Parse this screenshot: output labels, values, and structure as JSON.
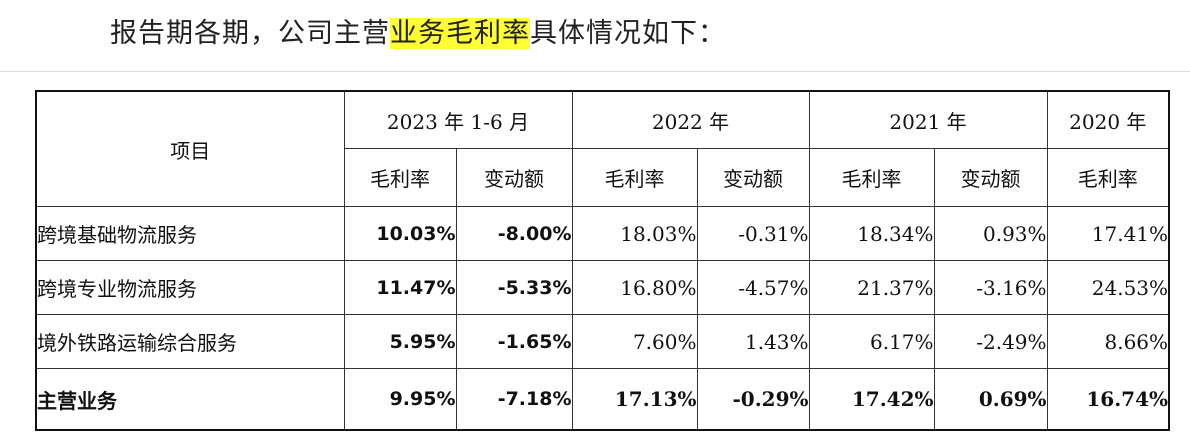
{
  "intro": {
    "before": "报告期各期，公司主营",
    "highlight": "业务毛利率",
    "after": "具体情况如下："
  },
  "table": {
    "item_header": "项目",
    "periods": [
      "2023 年 1-6 月",
      "2022 年",
      "2021 年",
      "2020 年"
    ],
    "sub_margin": "毛利率",
    "sub_change": "变动额",
    "rows": [
      {
        "label": "跨境基础物流服务",
        "cells": [
          "10.03%",
          "-8.00%",
          "18.03%",
          "-0.31%",
          "18.34%",
          "0.93%",
          "17.41%"
        ]
      },
      {
        "label": "跨境专业物流服务",
        "cells": [
          "11.47%",
          "-5.33%",
          "16.80%",
          "-4.57%",
          "21.37%",
          "-3.16%",
          "24.53%"
        ]
      },
      {
        "label": "境外铁路运输综合服务",
        "cells": [
          "5.95%",
          "-1.65%",
          "7.60%",
          "1.43%",
          "6.17%",
          "-2.49%",
          "8.66%"
        ]
      },
      {
        "label": "主营业务",
        "cells": [
          "9.95%",
          "-7.18%",
          "17.13%",
          "-0.29%",
          "17.42%",
          "0.69%",
          "16.74%"
        ]
      }
    ]
  },
  "colors": {
    "highlight": "#ffff33",
    "text": "#111111"
  }
}
